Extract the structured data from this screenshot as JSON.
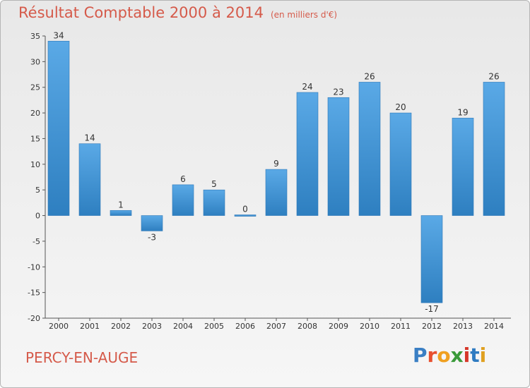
{
  "header": {
    "title": "Résultat Comptable 2000 à 2014",
    "subtitle": "(en milliers d'€)"
  },
  "footer": {
    "town": "PERCY-EN-AUGE",
    "logo_letters": [
      "P",
      "r",
      "o",
      "x",
      "i",
      "t",
      "i"
    ],
    "logo_colors": [
      "#3a7fc4",
      "#e8502f",
      "#f0a020",
      "#3a9a3a",
      "#d6372a",
      "#2f7bc1",
      "#e0a020"
    ]
  },
  "colors": {
    "bar_light": "#5aa9e6",
    "bar_dark": "#2e7fc0",
    "title": "#d55a4a"
  },
  "chart_data": {
    "type": "bar",
    "title": "Résultat Comptable 2000 à 2014",
    "xlabel": "",
    "ylabel": "",
    "ylim": [
      -20,
      35
    ],
    "yticks": [
      35,
      30,
      25,
      20,
      15,
      10,
      5,
      0,
      -5,
      -10,
      -15,
      -20
    ],
    "grid": false,
    "categories": [
      "2000",
      "2001",
      "2002",
      "2003",
      "2004",
      "2005",
      "2006",
      "2007",
      "2008",
      "2009",
      "2010",
      "2011",
      "2012",
      "2013",
      "2014"
    ],
    "values": [
      34,
      14,
      1,
      -3,
      6,
      5,
      0,
      9,
      24,
      23,
      26,
      20,
      -17,
      19,
      26
    ]
  }
}
